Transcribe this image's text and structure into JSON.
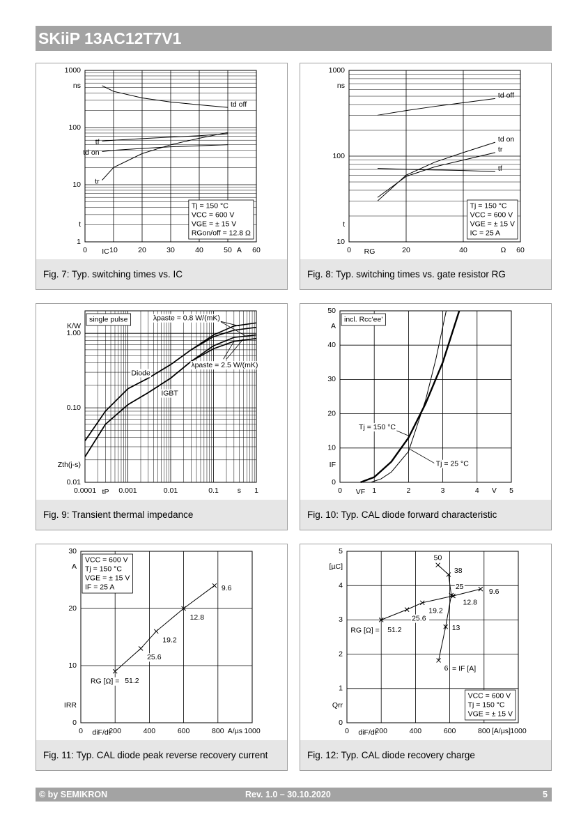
{
  "header": {
    "title": "SKiiP 13AC12T7V1"
  },
  "chart_data": [
    {
      "type": "line",
      "caption": "Fig. 7: Typ. switching times vs. IC",
      "xlabel": "IC",
      "xunit": "A",
      "ylabel": "t",
      "yunit": "ns",
      "xlim": [
        0,
        60
      ],
      "xticks": [
        0,
        10,
        20,
        30,
        40,
        50,
        60
      ],
      "ylim": [
        1,
        1000
      ],
      "yticks": [
        1,
        10,
        100,
        1000
      ],
      "ylog": true,
      "grid": true,
      "note": [
        "Tj = 150 °C",
        "VCC = 600 V",
        "VGE = ± 15 V",
        "RGon/off = 12.8 Ω"
      ],
      "note_position": "lower right",
      "series": [
        {
          "name": "td off",
          "color": "#000000",
          "x": [
            6,
            10,
            20,
            30,
            40,
            50
          ],
          "values": [
            540,
            430,
            330,
            280,
            250,
            225
          ]
        },
        {
          "name": "tf",
          "color": "#000000",
          "x": [
            6,
            10,
            20,
            30,
            40,
            50
          ],
          "values": [
            58,
            60,
            64,
            68,
            72,
            78
          ]
        },
        {
          "name": "td on",
          "color": "#000000",
          "x": [
            6,
            10,
            20,
            30,
            40,
            50
          ],
          "values": [
            38,
            40,
            43,
            46,
            48,
            50
          ]
        },
        {
          "name": "tr",
          "color": "#000000",
          "x": [
            6,
            10,
            20,
            30,
            40,
            50
          ],
          "values": [
            12,
            20,
            35,
            50,
            65,
            82
          ]
        }
      ]
    },
    {
      "type": "line",
      "caption": "Fig. 8: Typ. switching times vs. gate resistor RG",
      "xlabel": "RG",
      "xunit": "Ω",
      "ylabel": "t",
      "yunit": "ns",
      "xlim": [
        0,
        60
      ],
      "xticks": [
        0,
        20,
        40,
        60
      ],
      "ylim": [
        10,
        1000
      ],
      "yticks": [
        10,
        100,
        1000
      ],
      "ylog": true,
      "grid": true,
      "note": [
        "Tj = 150 °C",
        "VCC = 600 V",
        "VGE = ± 15 V",
        "IC = 25 A"
      ],
      "note_position": "lower right",
      "series": [
        {
          "name": "td off",
          "color": "#000000",
          "x": [
            10,
            20,
            30,
            40,
            51.2
          ],
          "values": [
            300,
            340,
            380,
            420,
            470
          ]
        },
        {
          "name": "td on",
          "color": "#000000",
          "x": [
            10,
            20,
            30,
            40,
            51.2
          ],
          "values": [
            30,
            60,
            85,
            110,
            145
          ]
        },
        {
          "name": "tr",
          "color": "#000000",
          "x": [
            10,
            20,
            30,
            40,
            51.2
          ],
          "values": [
            33,
            58,
            75,
            90,
            110
          ]
        },
        {
          "name": "tf",
          "color": "#000000",
          "x": [
            10,
            20,
            30,
            40,
            51.2
          ],
          "values": [
            72,
            70,
            69,
            68,
            66
          ]
        }
      ]
    },
    {
      "type": "line",
      "caption": "Fig. 9: Transient thermal impedance",
      "xlabel": "tP",
      "xunit": "s",
      "ylabel": "Zth(j-s)",
      "yunit": "K/W",
      "xlog": true,
      "xlim": [
        0.0001,
        1
      ],
      "xticks": [
        0.0001,
        0.001,
        0.01,
        0.1,
        1
      ],
      "ylog": true,
      "ylim": [
        0.01,
        2
      ],
      "yticks": [
        0.01,
        {
          "value": 0.1,
          "label": "0.10"
        },
        {
          "value": 1,
          "label": "1.00"
        }
      ],
      "grid": true,
      "note": [
        "single pulse"
      ],
      "note_position": "upper left",
      "annotations": [
        "Diode",
        "IGBT",
        "λpaste = 0.8 W/(mK)",
        "λpaste = 2.5 W/(mK)"
      ],
      "x": [
        0.0001,
        0.0003,
        0.001,
        0.003,
        0.01,
        0.03,
        0.1,
        0.3,
        1
      ],
      "series": [
        {
          "color": "#000000",
          "values": [
            0.036,
            0.09,
            0.18,
            0.25,
            0.38,
            0.6,
            0.95,
            1.25,
            1.38
          ]
        },
        {
          "color": "#000000",
          "values": [
            0.036,
            0.09,
            0.18,
            0.25,
            0.38,
            0.6,
            0.9,
            1.1,
            1.2
          ]
        },
        {
          "color": "#000000",
          "values": [
            0.022,
            0.06,
            0.11,
            0.16,
            0.25,
            0.42,
            0.68,
            0.88,
            0.95
          ]
        },
        {
          "color": "#000000",
          "values": [
            0.022,
            0.06,
            0.11,
            0.16,
            0.25,
            0.42,
            0.62,
            0.78,
            0.85
          ]
        }
      ]
    },
    {
      "type": "line",
      "caption": "Fig. 10: Typ. CAL diode forward characteristic",
      "xlabel": "VF",
      "xunit": "V",
      "ylabel": "IF",
      "yunit": "A",
      "xlim": [
        0,
        5
      ],
      "xticks": [
        0,
        1,
        2,
        3,
        4,
        5
      ],
      "ylim": [
        0,
        50
      ],
      "yticks": [
        0,
        10,
        20,
        30,
        40,
        50
      ],
      "grid": true,
      "note": [
        "incl. Rcc'ee'"
      ],
      "note_position": "upper left",
      "series": [
        {
          "name": "Tj = 150 °C",
          "color": "#000000",
          "x": [
            0.6,
            1,
            1.5,
            2,
            2.5,
            3,
            3.48
          ],
          "values": [
            0,
            1.5,
            6,
            13,
            23,
            35,
            50
          ]
        },
        {
          "name": "Tj = 25 °C",
          "color": "#000000",
          "x": [
            0.9,
            1.2,
            1.5,
            2,
            2.5,
            2.8,
            3.1
          ],
          "values": [
            0,
            1,
            3,
            9,
            24,
            36,
            50
          ]
        }
      ]
    },
    {
      "type": "line",
      "caption": "Fig. 11: Typ. CAL diode peak reverse recovery current",
      "xlabel": "diF/dt",
      "xunit": "A/µs",
      "ylabel": "IRR",
      "yunit": "A",
      "xlim": [
        0,
        1000
      ],
      "xticks": [
        0,
        200,
        400,
        600,
        800,
        1000
      ],
      "ylim": [
        0,
        30
      ],
      "yticks": [
        0,
        10,
        20,
        30
      ],
      "grid": true,
      "note": [
        "VCC = 600 V",
        "Tj = 150 °C",
        "VGE = ± 15 V",
        "IF = 25 A"
      ],
      "note_position": "upper left",
      "annotations": [
        "RG [Ω] ="
      ],
      "series": [
        {
          "color": "#000000",
          "x": [
            200,
            350,
            440,
            600,
            780
          ],
          "values": [
            9,
            13,
            16,
            20,
            24
          ],
          "point_labels": [
            "51.2",
            "25.6",
            "19.2",
            "12.8",
            "9.6"
          ]
        }
      ]
    },
    {
      "type": "line",
      "caption": "Fig. 12: Typ. CAL diode recovery charge",
      "xlabel": "diF/dt",
      "xunit": "[A/µs]",
      "ylabel": "Qrr",
      "yunit": "[µC]",
      "xlim": [
        0,
        1000
      ],
      "xticks": [
        0,
        200,
        400,
        600,
        800,
        1000
      ],
      "ylim": [
        0,
        5
      ],
      "yticks": [
        0,
        1,
        2,
        3,
        4,
        5
      ],
      "grid": true,
      "note": [
        "VCC = 600 V",
        "Tj = 150 °C",
        "VGE = ± 15 V"
      ],
      "note_position": "lower right",
      "annotations": [
        "RG [Ω] =",
        "= IF [A]"
      ],
      "series": [
        {
          "color": "#000000",
          "x": [
            200,
            350,
            440,
            620,
            780
          ],
          "values": [
            3.0,
            3.3,
            3.5,
            3.7,
            3.9
          ],
          "point_labels": [
            "51.2",
            "25.6",
            "19.2",
            "12.8",
            "9.6"
          ]
        },
        {
          "color": "#000000",
          "x": [
            535,
            576,
            609,
            593,
            531
          ],
          "values": [
            1.82,
            2.8,
            3.72,
            4.32,
            4.6
          ],
          "point_labels": [
            "6",
            "13",
            "25",
            "38",
            "50"
          ]
        }
      ]
    }
  ],
  "footer": {
    "copyright": "© by SEMIKRON",
    "revision": "Rev. 1.0 – 30.10.2020",
    "page": "5"
  }
}
